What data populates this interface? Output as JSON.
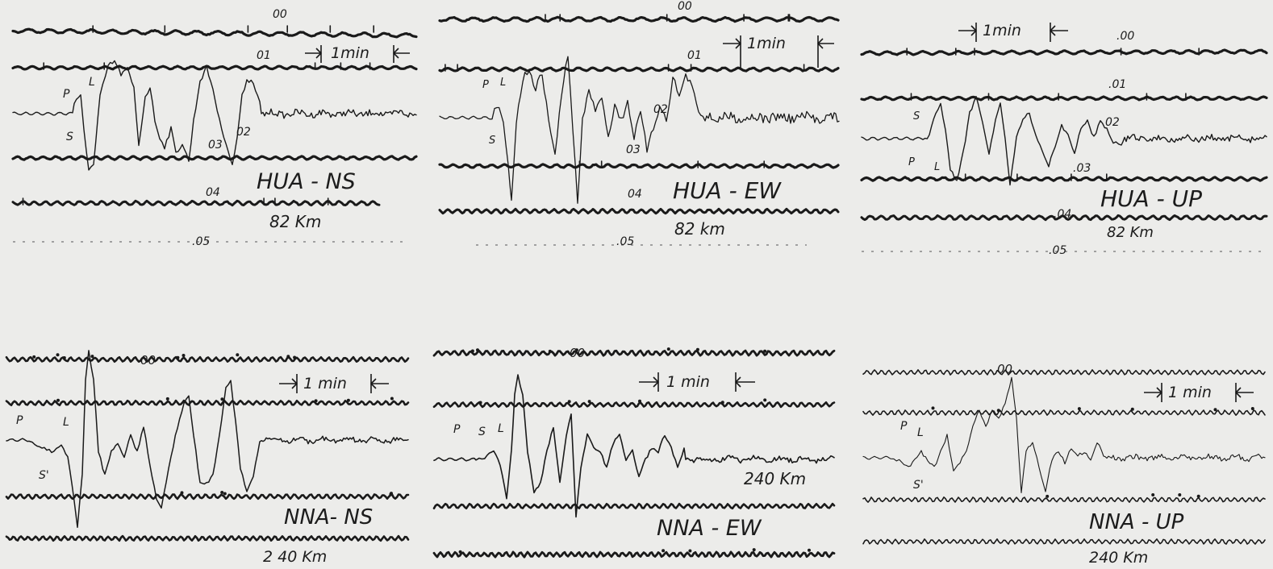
{
  "panels": [
    {
      "id": "hua-ns",
      "station_label": "HUA - NS",
      "distance_label": "82  Km",
      "scale_label": "1min",
      "phase_labels": [
        "P",
        "S",
        "L"
      ],
      "minute_marks": [
        "00",
        "01",
        "02",
        "03",
        "04",
        ".05"
      ]
    },
    {
      "id": "hua-ew",
      "station_label": "HUA - EW",
      "distance_label": "82  km",
      "scale_label": "1min",
      "phase_labels": [
        "P",
        "S",
        "L"
      ],
      "minute_marks": [
        "00",
        "01",
        "02",
        "03",
        "04",
        ".05"
      ]
    },
    {
      "id": "hua-up",
      "station_label": "HUA - UP",
      "distance_label": "82  Km",
      "scale_label": "1min",
      "phase_labels": [
        "P",
        "S",
        "L"
      ],
      "minute_marks": [
        ".00",
        ".01",
        "02",
        ".03",
        ".04",
        ".05"
      ]
    },
    {
      "id": "nna-ns",
      "station_label": "NNA- NS",
      "distance_label": "2 40  Km",
      "scale_label": "1 min",
      "phase_labels": [
        "P",
        "S'",
        "L"
      ],
      "minute_marks": [
        "00"
      ]
    },
    {
      "id": "nna-ew",
      "station_label": "NNA - EW",
      "distance_label": "240 Km",
      "scale_label": "1 min",
      "phase_labels": [
        "P",
        "S",
        "L"
      ],
      "minute_marks": [
        "00"
      ]
    },
    {
      "id": "nna-up",
      "station_label": "NNA  -  UP",
      "distance_label": "240  Km",
      "scale_label": "1 min",
      "phase_labels": [
        "P",
        "L",
        "S'"
      ],
      "minute_marks": [
        "00"
      ]
    }
  ]
}
